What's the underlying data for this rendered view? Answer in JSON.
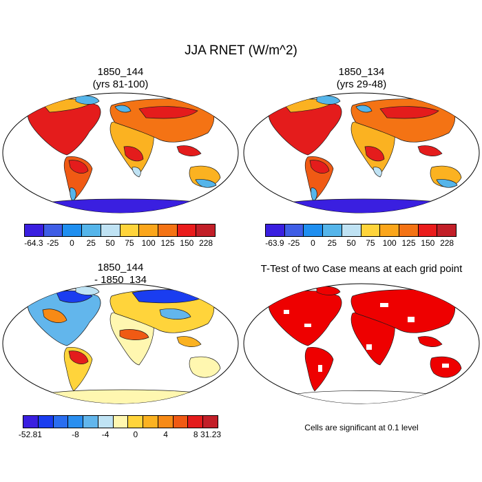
{
  "title": "JJA RNET (W/m^2)",
  "panels": [
    {
      "title_line1": "1850_144",
      "title_line2": "(yrs 81-100)"
    },
    {
      "title_line1": "1850_134",
      "title_line2": "(yrs 29-48)"
    },
    {
      "title_line1": "1850_144",
      "title_line2": "- 1850_134"
    },
    {
      "title_line1": "T-Test of two Case means at each grid point",
      "title_line2": ""
    }
  ],
  "colorbar_abs_left": {
    "labels": [
      "-64.3",
      "-25",
      "0",
      "25",
      "50",
      "75",
      "100",
      "125",
      "150",
      "228"
    ],
    "colors": [
      "#3a1fe0",
      "#3f5ee6",
      "#1f8ff0",
      "#55b5ea",
      "#bfe2f3",
      "#ffd43b",
      "#fba61b",
      "#f47314",
      "#ea1c1c",
      "#c21f28"
    ]
  },
  "colorbar_abs_right": {
    "labels": [
      "-63.9",
      "-25",
      "0",
      "25",
      "50",
      "75",
      "100",
      "125",
      "150",
      "228"
    ],
    "colors": [
      "#3a1fe0",
      "#3f5ee6",
      "#1f8ff0",
      "#55b5ea",
      "#bfe2f3",
      "#ffd43b",
      "#fba61b",
      "#f47314",
      "#ea1c1c",
      "#c21f28"
    ]
  },
  "colorbar_diff": {
    "labels": [
      "-52.81",
      "-8",
      "-4",
      "0",
      "4",
      "8",
      "31.23"
    ],
    "colors": [
      "#3a1fe0",
      "#1a3df0",
      "#2a6ef0",
      "#2a8ff0",
      "#62b6ec",
      "#bfe3f4",
      "#fff7b0",
      "#ffd43b",
      "#fbb221",
      "#f78a16",
      "#f05a14",
      "#e41c1c",
      "#c21f28"
    ]
  },
  "significance_note": "Cells are significant at 0.1 level",
  "colors": {
    "ocean": "#ffffff",
    "coast": "#1a1a1a",
    "significant": "#ee0000"
  }
}
